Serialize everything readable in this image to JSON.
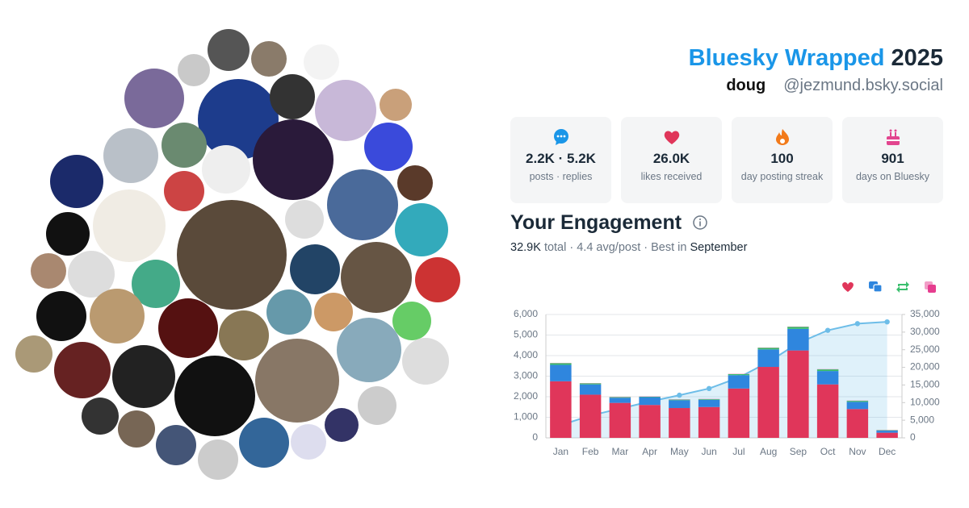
{
  "header": {
    "brand": "Bluesky Wrapped",
    "year": "2025",
    "name": "doug",
    "handle": "@jezmund.bsky.social"
  },
  "stats": [
    {
      "value": "2.2K · 5.2K",
      "label": "posts · replies"
    },
    {
      "value": "26.0K",
      "label": "likes received"
    },
    {
      "value": "100",
      "label": "day posting streak"
    },
    {
      "value": "901",
      "label": "days on Bluesky"
    }
  ],
  "engagement": {
    "heading": "Your Engagement",
    "total": "32.9K",
    "detail": "total · 4.4 avg/post · Best in",
    "best": "September"
  },
  "chart_data": {
    "type": "bar",
    "stacked": true,
    "categories": [
      "Jan",
      "Feb",
      "Mar",
      "Apr",
      "May",
      "Jun",
      "Jul",
      "Aug",
      "Sep",
      "Oct",
      "Nov",
      "Dec"
    ],
    "series": [
      {
        "color": "#e0365a",
        "values": [
          2750,
          2100,
          1700,
          1600,
          1450,
          1500,
          2400,
          3450,
          4250,
          2600,
          1400,
          250
        ]
      },
      {
        "color": "#2f86de",
        "values": [
          800,
          500,
          250,
          380,
          380,
          350,
          650,
          850,
          1050,
          650,
          350,
          100
        ]
      },
      {
        "color": "#3bbf6e",
        "values": [
          80,
          50,
          30,
          20,
          30,
          30,
          50,
          80,
          100,
          80,
          50,
          20
        ]
      },
      {
        "color": "#e63d8f",
        "values": [
          10,
          10,
          10,
          10,
          10,
          10,
          10,
          10,
          10,
          10,
          10,
          10
        ]
      },
      {
        "type": "line",
        "axis": "y2",
        "color": "#6dbde8",
        "values": [
          3600,
          6300,
          8300,
          10300,
          12100,
          14000,
          17100,
          21500,
          26900,
          30500,
          32400,
          32900
        ]
      }
    ],
    "ylim": [
      0,
      6000
    ],
    "yticks": [
      0,
      {
        "value": 1000,
        "label": "1,000"
      },
      {
        "value": 2000,
        "label": "2,000"
      },
      {
        "value": 3000,
        "label": "3,000"
      },
      {
        "value": 4000,
        "label": "4,000"
      },
      {
        "value": 5000,
        "label": "5,000"
      },
      {
        "value": 6000,
        "label": "6,000"
      }
    ],
    "y2lim": [
      0,
      35000
    ],
    "y2ticks": [
      0,
      {
        "value": 5000,
        "label": "5,000"
      },
      {
        "value": 10000,
        "label": "10,000"
      },
      {
        "value": 15000,
        "label": "15,000"
      },
      {
        "value": 20000,
        "label": "20,000"
      },
      {
        "value": 25000,
        "label": "25,000"
      },
      {
        "value": 30000,
        "label": "30,000"
      },
      {
        "value": 35000,
        "label": "35,000"
      }
    ],
    "grid": true
  }
}
